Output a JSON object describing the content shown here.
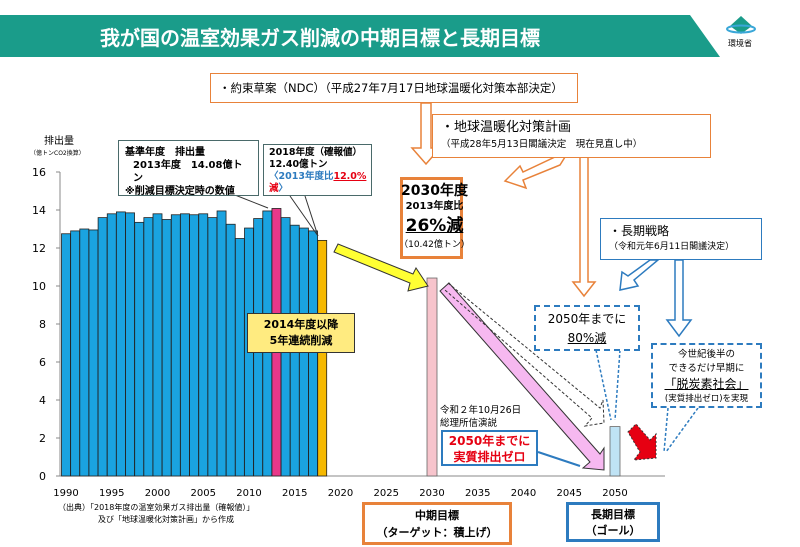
{
  "header": {
    "title": "我が国の温室効果ガス削減の中期目標と長期目標",
    "logo_text": "環境省"
  },
  "colors": {
    "banner": "#1a9c8a",
    "bar": "#1aa3e0",
    "bar_base": "#e8388a",
    "bar_2018": "#f5b800",
    "bar_2030": "#f7c4cc",
    "bar_2050": "#bfe3f5",
    "orange": "#e8823a",
    "blue": "#2d7bbf",
    "red": "#e60012"
  },
  "chart_data": {
    "type": "bar",
    "ylabel": "排出量",
    "yunit": "（億トンCO2換算）",
    "ylim": [
      0,
      16
    ],
    "yticks": [
      0,
      2,
      4,
      6,
      8,
      10,
      12,
      14,
      16
    ],
    "xticks": [
      1990,
      1995,
      2000,
      2005,
      2010,
      2015,
      2020,
      2025,
      2030,
      2035,
      2040,
      2045,
      2050
    ],
    "years": [
      1990,
      1991,
      1992,
      1993,
      1994,
      1995,
      1996,
      1997,
      1998,
      1999,
      2000,
      2001,
      2002,
      2003,
      2004,
      2005,
      2006,
      2007,
      2008,
      2009,
      2010,
      2011,
      2012,
      2013,
      2014,
      2015,
      2016,
      2017,
      2018
    ],
    "values": [
      12.75,
      12.9,
      13.0,
      12.95,
      13.6,
      13.8,
      13.9,
      13.85,
      13.35,
      13.6,
      13.8,
      13.5,
      13.75,
      13.8,
      13.75,
      13.8,
      13.6,
      13.95,
      13.25,
      12.5,
      13.05,
      13.55,
      13.95,
      14.08,
      13.6,
      13.2,
      13.05,
      12.9,
      12.4
    ],
    "targets": [
      {
        "year": 2030,
        "value": 10.42
      },
      {
        "year": 2050,
        "value": 2.6
      }
    ]
  },
  "baseline_box": {
    "line1": "基準年度　排出量",
    "line2": "2013年度　14.08億トン",
    "line3": "※削減目標決定時の数値"
  },
  "box_2018": {
    "line1": "2018年度（確報値）",
    "line2": "12.40億トン",
    "line3a": "〈2013年度比",
    "line3b": "12.0%",
    "line4": "減",
    "line4b": "〉"
  },
  "ndc_box": {
    "text": "・約束草案（NDC）（平成27年7月17日地球温暖化対策本部決定）"
  },
  "plan_box": {
    "title": "・地球温暖化対策計画",
    "sub": "（平成28年5月13日閣議決定　現在見直し中）"
  },
  "target_2030": {
    "line1": "2030年度",
    "line2": "2013年度比",
    "line3": "26%減",
    "line4": "（10.42億トン）"
  },
  "strategy_box": {
    "title": "・長期戦略",
    "sub": "（令和元年6月11日閣議決定）"
  },
  "box_80": {
    "line1": "2050年までに",
    "line2": "80%減"
  },
  "decarb_box": {
    "line1": "今世紀後半の",
    "line2": "できるだけ早期に",
    "line3": "「脱炭素社会」",
    "line4": "(実質排出ゼロ)を実現"
  },
  "reduction_box": {
    "line1": "2014年度以降",
    "line2": "5年連続削減"
  },
  "speech": {
    "line1": "令和２年10月26日",
    "line2": "総理所信演説"
  },
  "zero_box": {
    "line1": "2050年までに",
    "line2": "実質排出ゼロ"
  },
  "mid_goal": {
    "line1": "中期目標",
    "line2": "（ターゲット：積上げ）"
  },
  "long_goal": {
    "line1": "長期目標",
    "line2": "（ゴール）"
  },
  "source": {
    "line1": "（出典）「2018年度の温室効果ガス排出量（確報値）」",
    "line2": "及び「地球温暖化対策計画」から作成"
  }
}
